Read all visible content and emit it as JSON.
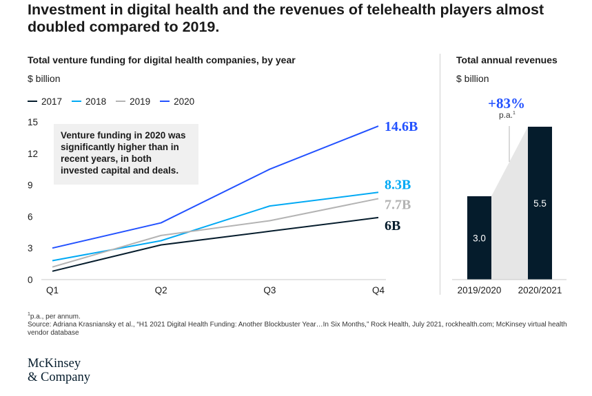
{
  "headline": "Investment in digital health and the revenues of telehealth players almost doubled compared to 2019.",
  "left_chart": {
    "subtitle": "Total venture funding for digital health companies, by year",
    "unit": "$ billion",
    "callout": "Venture funding in 2020 was significantly higher than in recent years, in both invested capital and deals."
  },
  "right_chart": {
    "subtitle": "Total annual revenues",
    "unit": "$ billion",
    "growth_label": "+83%",
    "growth_note": "p.a.",
    "growth_note_sup": "1"
  },
  "colors": {
    "2017": "#051c2c",
    "2018": "#00a9f4",
    "2019": "#b3b3b3",
    "2020": "#2251ff",
    "bar": "#051c2c",
    "connector": "#e6e6e6"
  },
  "chart_data": [
    {
      "type": "line",
      "title": "Total venture funding for digital health companies, by year",
      "ylabel": "$ billion",
      "categories": [
        "Q1",
        "Q2",
        "Q3",
        "Q4"
      ],
      "yticks": [
        "0",
        "3",
        "6",
        "9",
        "12",
        "15"
      ],
      "ylim": [
        0,
        15
      ],
      "series": [
        {
          "name": "2017",
          "values": [
            0.8,
            3.3,
            4.6,
            5.9
          ],
          "end_label": "6B"
        },
        {
          "name": "2018",
          "values": [
            1.8,
            3.7,
            7.0,
            8.3
          ],
          "end_label": "8.3B"
        },
        {
          "name": "2019",
          "values": [
            1.2,
            4.2,
            5.6,
            7.7
          ],
          "end_label": "7.7B"
        },
        {
          "name": "2020",
          "values": [
            3.0,
            5.4,
            10.5,
            14.6
          ],
          "end_label": "14.6B"
        }
      ]
    },
    {
      "type": "bar",
      "title": "Total annual revenues",
      "ylabel": "$ billion",
      "categories": [
        "2019/2020",
        "2020/2021"
      ],
      "values": [
        3.0,
        5.5
      ],
      "value_labels": [
        "3.0",
        "5.5"
      ],
      "annotation": "+83% p.a."
    }
  ],
  "footnote": {
    "note_sup": "1",
    "note": "p.a., per annum.",
    "source": "Source: Adriana Krasniansky et al., “H1 2021 Digital Health Funding: Another Blockbuster Year…In Six Months,” Rock Health, July 2021, rockhealth.com; McKinsey virtual health vendor database"
  },
  "logo": {
    "line1": "McKinsey",
    "line2": "& Company"
  }
}
